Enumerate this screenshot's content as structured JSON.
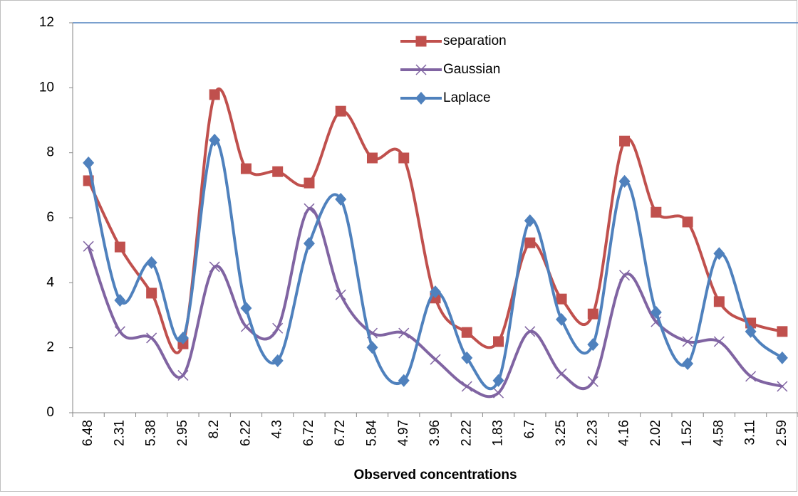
{
  "chart_data": {
    "type": "line",
    "smooth": true,
    "x_label": "Observed concentrations",
    "categories": [
      "6.48",
      "2.31",
      "5.38",
      "2.95",
      "8.2",
      "6.22",
      "4.3",
      "6.72",
      "6.72",
      "5.84",
      "4.97",
      "3.96",
      "2.22",
      "1.83",
      "6.7",
      "3.25",
      "2.23",
      "4.16",
      "2.02",
      "1.52",
      "4.58",
      "3.11",
      "2.59"
    ],
    "series": [
      {
        "name": "separation",
        "color": "#c0504d",
        "marker": "square",
        "values": [
          7.14,
          5.1,
          3.68,
          2.12,
          9.79,
          7.51,
          7.42,
          7.07,
          9.28,
          7.84,
          7.84,
          3.53,
          2.47,
          2.19,
          5.23,
          3.5,
          3.04,
          8.36,
          6.17,
          5.87,
          3.42,
          2.76,
          2.5
        ]
      },
      {
        "name": "Gaussian",
        "color": "#8064a2",
        "marker": "x",
        "values": [
          5.12,
          2.5,
          2.3,
          1.15,
          4.49,
          2.65,
          2.6,
          6.28,
          3.63,
          2.45,
          2.45,
          1.64,
          0.81,
          0.61,
          2.5,
          1.2,
          0.96,
          4.23,
          2.8,
          2.19,
          2.19,
          1.12,
          0.81
        ]
      },
      {
        "name": "Laplace",
        "color": "#4f81bd",
        "marker": "diamond",
        "values": [
          7.69,
          3.46,
          4.62,
          2.3,
          8.39,
          3.22,
          1.6,
          5.21,
          6.57,
          2.01,
          0.99,
          3.72,
          1.69,
          0.99,
          5.91,
          2.87,
          2.1,
          7.12,
          3.09,
          1.51,
          4.9,
          2.5,
          1.69
        ]
      }
    ],
    "ylim": [
      0,
      12
    ],
    "yticks": [
      0,
      2,
      4,
      6,
      8,
      10,
      12
    ],
    "grid": false,
    "legend": "top"
  }
}
